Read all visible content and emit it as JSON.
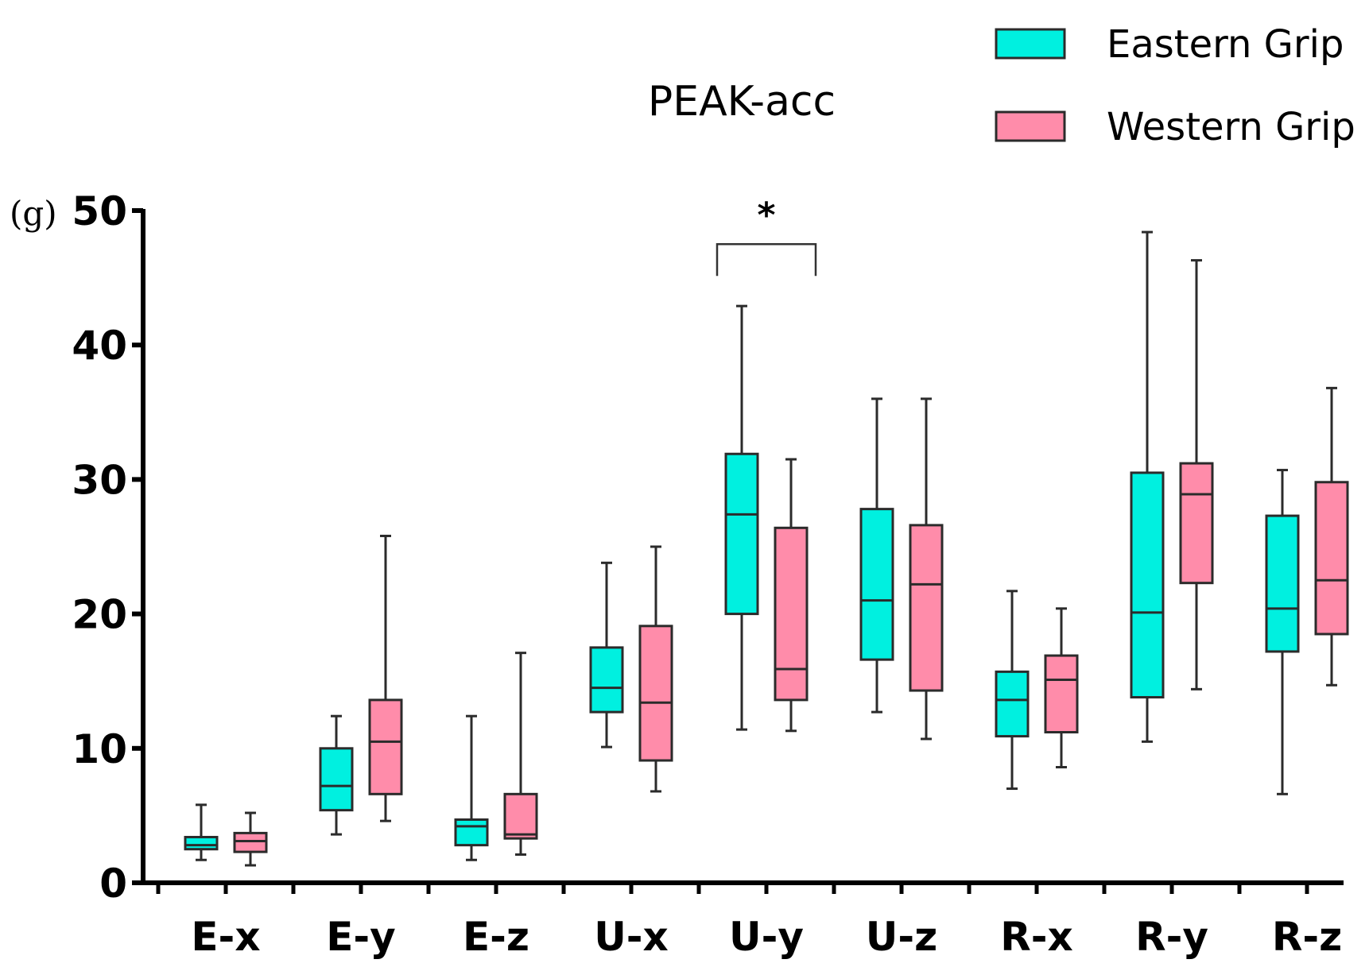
{
  "chart_data": {
    "type": "box",
    "title": "PEAK-acc",
    "ylabel": "(g)",
    "xlabel": "",
    "ylim": [
      0,
      50
    ],
    "yticks": [
      0,
      10,
      20,
      30,
      40,
      50
    ],
    "categories": [
      "E-x",
      "E-y",
      "E-z",
      "U-x",
      "U-y",
      "U-z",
      "R-x",
      "R-y",
      "R-z"
    ],
    "legend_position": "top-right",
    "series": [
      {
        "name": "Eastern Grip",
        "color": "#00f0e0",
        "boxes": [
          {
            "min": 1.7,
            "q1": 2.5,
            "median": 2.8,
            "q3": 3.4,
            "max": 5.8
          },
          {
            "min": 3.6,
            "q1": 5.4,
            "median": 7.2,
            "q3": 10.0,
            "max": 12.4
          },
          {
            "min": 1.7,
            "q1": 2.8,
            "median": 4.2,
            "q3": 4.7,
            "max": 12.4
          },
          {
            "min": 10.1,
            "q1": 12.7,
            "median": 14.5,
            "q3": 17.5,
            "max": 23.8
          },
          {
            "min": 11.4,
            "q1": 20.0,
            "median": 27.4,
            "q3": 31.9,
            "max": 42.9
          },
          {
            "min": 12.7,
            "q1": 16.6,
            "median": 21.0,
            "q3": 27.8,
            "max": 36.0
          },
          {
            "min": 7.0,
            "q1": 10.9,
            "median": 13.6,
            "q3": 15.7,
            "max": 21.7
          },
          {
            "min": 10.5,
            "q1": 13.8,
            "median": 20.1,
            "q3": 30.5,
            "max": 48.4
          },
          {
            "min": 6.6,
            "q1": 17.2,
            "median": 20.4,
            "q3": 27.3,
            "max": 30.7
          }
        ]
      },
      {
        "name": "Western Grip",
        "color": "#ff8caa",
        "boxes": [
          {
            "min": 1.3,
            "q1": 2.3,
            "median": 3.1,
            "q3": 3.7,
            "max": 5.2
          },
          {
            "min": 4.6,
            "q1": 6.6,
            "median": 10.5,
            "q3": 13.6,
            "max": 25.8
          },
          {
            "min": 2.1,
            "q1": 3.3,
            "median": 3.6,
            "q3": 6.6,
            "max": 17.1
          },
          {
            "min": 6.8,
            "q1": 9.1,
            "median": 13.4,
            "q3": 19.1,
            "max": 25.0
          },
          {
            "min": 11.3,
            "q1": 13.6,
            "median": 15.9,
            "q3": 26.4,
            "max": 31.5
          },
          {
            "min": 10.7,
            "q1": 14.3,
            "median": 22.2,
            "q3": 26.6,
            "max": 36.0
          },
          {
            "min": 8.6,
            "q1": 11.2,
            "median": 15.1,
            "q3": 16.9,
            "max": 20.4
          },
          {
            "min": 14.4,
            "q1": 22.3,
            "median": 28.9,
            "q3": 31.2,
            "max": 46.3
          },
          {
            "min": 14.7,
            "q1": 18.5,
            "median": 22.5,
            "q3": 29.8,
            "max": 36.8
          }
        ]
      }
    ],
    "annotations": [
      {
        "category": "U-y",
        "text": "*",
        "bracket_y": 47.5
      }
    ]
  }
}
